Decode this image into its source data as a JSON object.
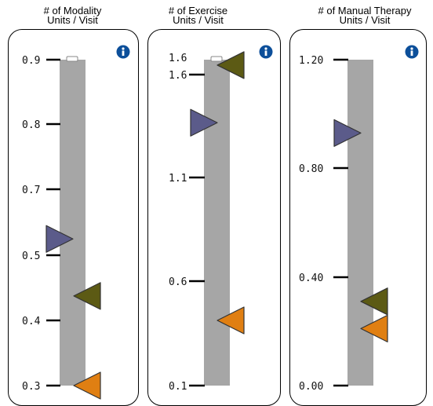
{
  "chart_data": [
    {
      "type": "gauge",
      "title_lines": [
        "# of Modality",
        "Units / Visit"
      ],
      "tick_labels": [
        "0.9",
        "0.8",
        "0.7",
        "0.5",
        "0.4",
        "0.3"
      ],
      "ylim": [
        0.3,
        0.9
      ],
      "markers": [
        {
          "color": "#5b5b8a",
          "direction": "right",
          "value": 0.57
        },
        {
          "color": "#5c5a14",
          "direction": "left",
          "value": 0.465
        },
        {
          "color": "#e07f12",
          "direction": "left",
          "value": 0.3
        }
      ],
      "top_handle": true,
      "info_icon": "info-icon"
    },
    {
      "type": "gauge",
      "title_lines": [
        "# of Exercise",
        "Units / Visit"
      ],
      "tick_labels": [
        "1.6",
        "1.1",
        "0.6",
        "0.1"
      ],
      "extra_top_label": "1.6",
      "ylim": [
        0.1,
        1.6
      ],
      "markers": [
        {
          "color": "#5c5a14",
          "direction": "left",
          "value": 1.575
        },
        {
          "color": "#5b5b8a",
          "direction": "right",
          "value": 1.31
        },
        {
          "color": "#e07f12",
          "direction": "left",
          "value": 0.4
        }
      ],
      "top_handle": true,
      "info_icon": "info-icon"
    },
    {
      "type": "gauge",
      "title_lines": [
        "# of Manual Therapy",
        "Units / Visit"
      ],
      "tick_labels": [
        "1.20",
        "0.80",
        "0.40",
        "0.00"
      ],
      "ylim": [
        0.0,
        1.2
      ],
      "markers": [
        {
          "color": "#5b5b8a",
          "direction": "right",
          "value": 0.93
        },
        {
          "color": "#5c5a14",
          "direction": "left",
          "value": 0.31
        },
        {
          "color": "#e07f12",
          "direction": "left",
          "value": 0.21
        }
      ],
      "top_handle": false,
      "info_icon": "info-icon"
    }
  ]
}
